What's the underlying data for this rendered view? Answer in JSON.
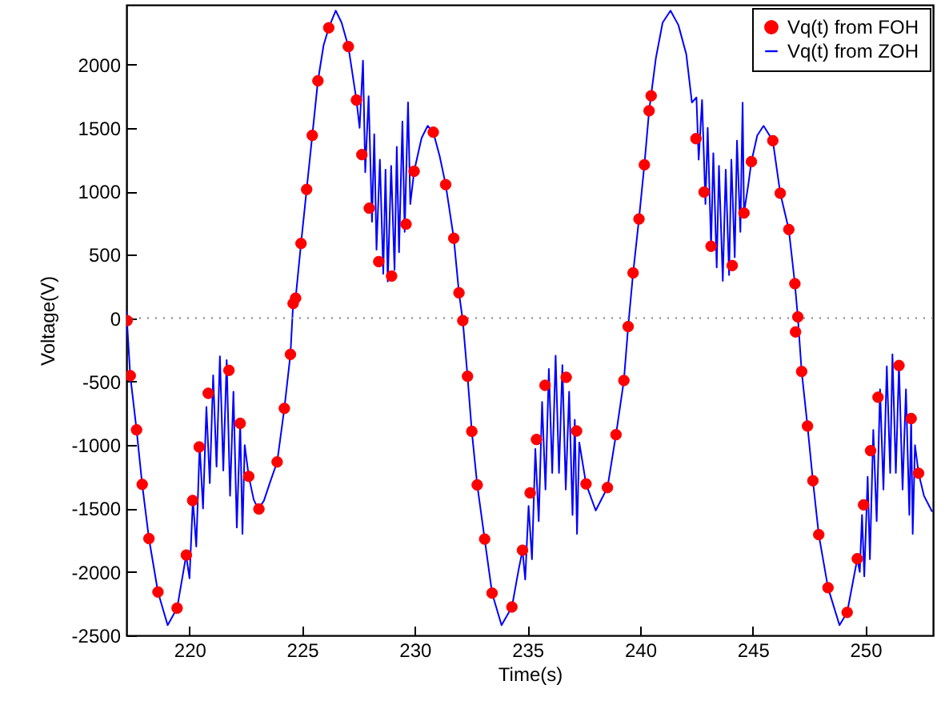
{
  "chart_data": {
    "type": "line",
    "xlabel": "Time(s)",
    "ylabel": "Voltage(V)",
    "xlim": [
      217.2,
      253
    ],
    "ylim": [
      -2500,
      2470
    ],
    "xticks": [
      220,
      225,
      230,
      235,
      240,
      245,
      250
    ],
    "yticks": [
      -2500,
      -2000,
      -1500,
      -1000,
      -500,
      0,
      500,
      1000,
      1500,
      2000
    ],
    "grid": false,
    "legend": "top right",
    "ref_lines": [
      {
        "axis": "y",
        "value": 0,
        "color": "#808080",
        "line_style": "dotted"
      }
    ],
    "series": [
      {
        "name": "Vq(t) from FOH",
        "type": "scatter",
        "marker": "circle",
        "color": "#ff0000",
        "x": [
          217.23,
          217.37,
          217.65,
          217.9,
          218.2,
          218.6,
          219.45,
          219.86,
          220.14,
          220.43,
          220.83,
          221.75,
          222.25,
          222.63,
          223.08,
          223.89,
          224.21,
          224.48,
          224.6,
          224.71,
          224.95,
          225.2,
          225.45,
          225.7,
          226.18,
          227.05,
          227.41,
          227.65,
          227.98,
          228.4,
          228.97,
          229.61,
          229.97,
          230.82,
          231.37,
          231.73,
          231.96,
          232.13,
          232.34,
          232.53,
          232.77,
          233.1,
          233.43,
          234.31,
          234.78,
          235.12,
          235.4,
          235.78,
          236.72,
          237.18,
          237.6,
          238.55,
          238.93,
          239.28,
          239.47,
          239.69,
          239.95,
          240.19,
          240.4,
          240.49,
          242.48,
          242.84,
          243.15,
          244.09,
          244.61,
          244.94,
          245.89,
          246.22,
          246.6,
          246.87,
          246.9,
          247.0,
          247.17,
          247.43,
          247.67,
          247.93,
          248.34,
          249.19,
          249.64,
          249.92,
          250.23,
          250.56,
          251.49,
          252.03,
          252.36
        ],
        "values": [
          -19,
          -453,
          -880,
          -1310,
          -1737,
          -2158,
          -2285,
          -1867,
          -1437,
          -1015,
          -592,
          -411,
          -829,
          -1247,
          -1504,
          -1133,
          -711,
          -285,
          116,
          158,
          589,
          1015,
          1441,
          1871,
          2289,
          2141,
          1719,
          1289,
          867,
          446,
          332,
          741,
          1158,
          1466,
          1053,
          630,
          200,
          -19,
          -458,
          -892,
          -1314,
          -1741,
          -2167,
          -2276,
          -1829,
          -1377,
          -956,
          -529,
          -466,
          -889,
          -1306,
          -1335,
          -918,
          -491,
          -66,
          357,
          782,
          1209,
          1635,
          1753,
          1415,
          994,
          567,
          415,
          829,
          1234,
          1399,
          985,
          699,
          272,
          -108,
          10,
          -420,
          -850,
          -1281,
          -1706,
          -2124,
          -2319,
          -1896,
          -1471,
          -1044,
          -623,
          -373,
          -791,
          -1222
        ]
      },
      {
        "name": "Vq(t) from ZOH",
        "type": "line",
        "color": "#0000ff",
        "x": [
          217.2,
          217.37,
          217.65,
          217.9,
          218.2,
          218.6,
          219.03,
          219.45,
          219.85,
          220.0,
          220.15,
          220.3,
          220.45,
          220.6,
          220.75,
          220.9,
          221.05,
          221.2,
          221.35,
          221.5,
          221.65,
          221.8,
          221.95,
          222.1,
          222.25,
          222.35,
          222.45,
          222.63,
          222.85,
          223.05,
          223.3,
          223.6,
          223.89,
          224.21,
          224.48,
          224.6,
          224.71,
          224.95,
          225.2,
          225.45,
          225.7,
          225.95,
          226.18,
          226.49,
          226.75,
          227.05,
          227.41,
          227.55,
          227.7,
          227.8,
          227.95,
          228.1,
          228.2,
          228.3,
          228.45,
          228.6,
          228.7,
          228.8,
          228.95,
          229.1,
          229.2,
          229.3,
          229.45,
          229.55,
          229.7,
          229.8,
          229.97,
          230.3,
          230.57,
          230.82,
          231.1,
          231.37,
          231.73,
          231.96,
          232.13,
          232.34,
          232.53,
          232.77,
          233.1,
          233.43,
          233.85,
          234.31,
          234.6,
          234.78,
          234.9,
          235.05,
          235.2,
          235.35,
          235.5,
          235.65,
          235.8,
          235.95,
          236.1,
          236.25,
          236.4,
          236.55,
          236.7,
          236.85,
          237.0,
          237.1,
          237.2,
          237.3,
          237.6,
          238.03,
          238.55,
          238.93,
          239.28,
          239.47,
          239.69,
          239.95,
          240.19,
          240.4,
          240.7,
          241.0,
          241.35,
          241.7,
          242.05,
          242.3,
          242.5,
          242.6,
          242.75,
          242.9,
          243.0,
          243.15,
          243.25,
          243.4,
          243.5,
          243.67,
          243.8,
          243.95,
          244.05,
          244.2,
          244.3,
          244.45,
          244.55,
          244.61,
          244.8,
          244.94,
          245.2,
          245.48,
          245.89,
          246.22,
          246.6,
          246.87,
          247.0,
          247.17,
          247.43,
          247.67,
          247.93,
          248.34,
          248.85,
          249.19,
          249.64,
          249.75,
          249.85,
          249.95,
          250.1,
          250.2,
          250.35,
          250.5,
          250.65,
          250.8,
          250.95,
          251.1,
          251.2,
          251.35,
          251.49,
          251.65,
          251.8,
          251.95,
          252.03,
          252.1,
          252.2,
          252.36,
          252.6,
          252.95
        ],
        "values": [
          50,
          -453,
          -880,
          -1310,
          -1737,
          -2158,
          -2420,
          -2285,
          -1870,
          -2050,
          -1430,
          -1800,
          -1000,
          -1500,
          -700,
          -1300,
          -450,
          -1170,
          -300,
          -1200,
          -330,
          -1400,
          -580,
          -1650,
          -829,
          -1700,
          -1000,
          -1247,
          -1430,
          -1504,
          -1440,
          -1280,
          -1133,
          -711,
          -285,
          116,
          158,
          589,
          1015,
          1441,
          1871,
          2150,
          2289,
          2424,
          2330,
          2141,
          1719,
          1500,
          2030,
          1150,
          1750,
          760,
          1450,
          540,
          1250,
          350,
          1170,
          290,
          1200,
          380,
          1350,
          520,
          1550,
          680,
          1700,
          900,
          1158,
          1420,
          1516,
          1466,
          1280,
          1053,
          630,
          200,
          -19,
          -458,
          -892,
          -1314,
          -1741,
          -2167,
          -2420,
          -2276,
          -1990,
          -1829,
          -2060,
          -1480,
          -1900,
          -1030,
          -1600,
          -660,
          -1350,
          -400,
          -1220,
          -295,
          -1220,
          -370,
          -1350,
          -580,
          -1550,
          -800,
          -1700,
          -980,
          -1306,
          -1516,
          -1335,
          -918,
          -491,
          -66,
          357,
          782,
          1209,
          1635,
          2050,
          2330,
          2424,
          2310,
          2080,
          1700,
          1740,
          1250,
          1720,
          900,
          1500,
          567,
          1300,
          400,
          1200,
          294,
          1170,
          340,
          1250,
          480,
          1400,
          680,
          1699,
          829,
          1050,
          1234,
          1440,
          1516,
          1399,
          985,
          699,
          272,
          10,
          -420,
          -850,
          -1281,
          -1706,
          -2124,
          -2420,
          -2319,
          -1896,
          -2000,
          -1550,
          -2035,
          -1250,
          -1900,
          -880,
          -1600,
          -560,
          -1350,
          -380,
          -1220,
          -285,
          -1220,
          -373,
          -1350,
          -560,
          -1550,
          -791,
          -1700,
          -1000,
          -1222,
          -1400,
          -1521
        ]
      }
    ]
  }
}
